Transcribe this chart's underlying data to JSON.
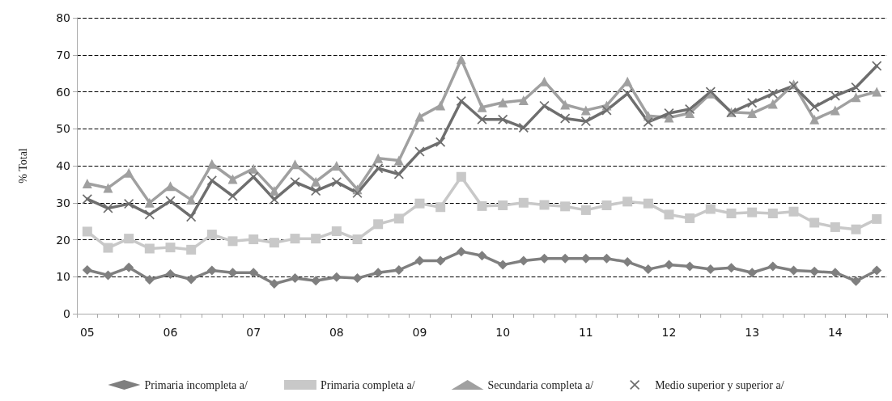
{
  "chart_data": {
    "type": "line",
    "ylabel": "% Total",
    "categories": [
      "05",
      null,
      null,
      null,
      "06",
      null,
      null,
      null,
      "07",
      null,
      null,
      null,
      "08",
      null,
      null,
      null,
      "09",
      null,
      null,
      null,
      "10",
      null,
      null,
      null,
      "11",
      null,
      null,
      null,
      "12",
      null,
      null,
      null,
      "13",
      null,
      null,
      null,
      "14",
      null,
      null
    ],
    "series": [
      {
        "name": "Primaria incompleta a/",
        "color": "#7f7f7f",
        "marker": "diamond",
        "values": [
          11.8,
          10.4,
          12.5,
          9.2,
          10.7,
          9.3,
          11.7,
          11.1,
          11.1,
          8.1,
          9.6,
          8.9,
          9.9,
          9.6,
          11.1,
          11.8,
          14.3,
          14.3,
          16.8,
          15.7,
          13.2,
          14.3,
          14.9,
          14.9,
          14.9,
          14.9,
          14.0,
          12.0,
          13.2,
          12.8,
          12.0,
          12.4,
          11.1,
          12.8,
          11.7,
          11.4,
          11.1,
          8.8,
          11.7
        ]
      },
      {
        "name": "Primaria completa a/",
        "color": "#c8c8c8",
        "marker": "square",
        "values": [
          22.2,
          17.8,
          20.3,
          17.6,
          17.9,
          17.3,
          21.4,
          19.6,
          20.1,
          19.2,
          20.3,
          20.3,
          22.3,
          20.1,
          24.2,
          25.7,
          29.8,
          28.8,
          37.0,
          29.1,
          29.3,
          30.0,
          29.4,
          29.0,
          28.0,
          29.3,
          30.3,
          29.8,
          26.8,
          25.8,
          28.3,
          27.1,
          27.4,
          27.1,
          27.6,
          24.6,
          23.4,
          22.8,
          25.6
        ]
      },
      {
        "name": "Secundaria completa a/",
        "color": "#a0a0a0",
        "marker": "triangle",
        "values": [
          35.2,
          34.0,
          38.1,
          30.0,
          34.5,
          30.8,
          40.5,
          36.4,
          39.2,
          33.2,
          40.4,
          35.7,
          40.0,
          33.6,
          42.0,
          41.4,
          53.2,
          56.3,
          68.8,
          55.8,
          57.1,
          57.7,
          62.8,
          56.5,
          55.0,
          56.3,
          62.8,
          53.5,
          53.0,
          54.2,
          59.5,
          54.5,
          54.2,
          56.7,
          62.0,
          52.5,
          55.0,
          58.5,
          60.0
        ]
      },
      {
        "name": "Medio superior y superior a/",
        "color": "#6e6e6e",
        "marker": "cross",
        "values": [
          31.0,
          28.5,
          29.7,
          26.8,
          30.5,
          26.2,
          36.0,
          31.8,
          37.0,
          30.9,
          35.6,
          33.2,
          35.6,
          32.6,
          39.3,
          37.7,
          43.8,
          46.4,
          57.5,
          52.5,
          52.5,
          50.3,
          56.2,
          52.8,
          52.0,
          55.0,
          59.5,
          51.8,
          54.2,
          55.3,
          60.0,
          54.4,
          57.0,
          59.5,
          61.6,
          55.9,
          58.9,
          61.2,
          67.0
        ]
      }
    ],
    "ylim": [
      0,
      80
    ],
    "yticks": [
      0,
      10,
      20,
      30,
      40,
      50,
      60,
      70,
      80
    ],
    "grid": "y",
    "legend": "bottom",
    "line_style": "solid"
  }
}
